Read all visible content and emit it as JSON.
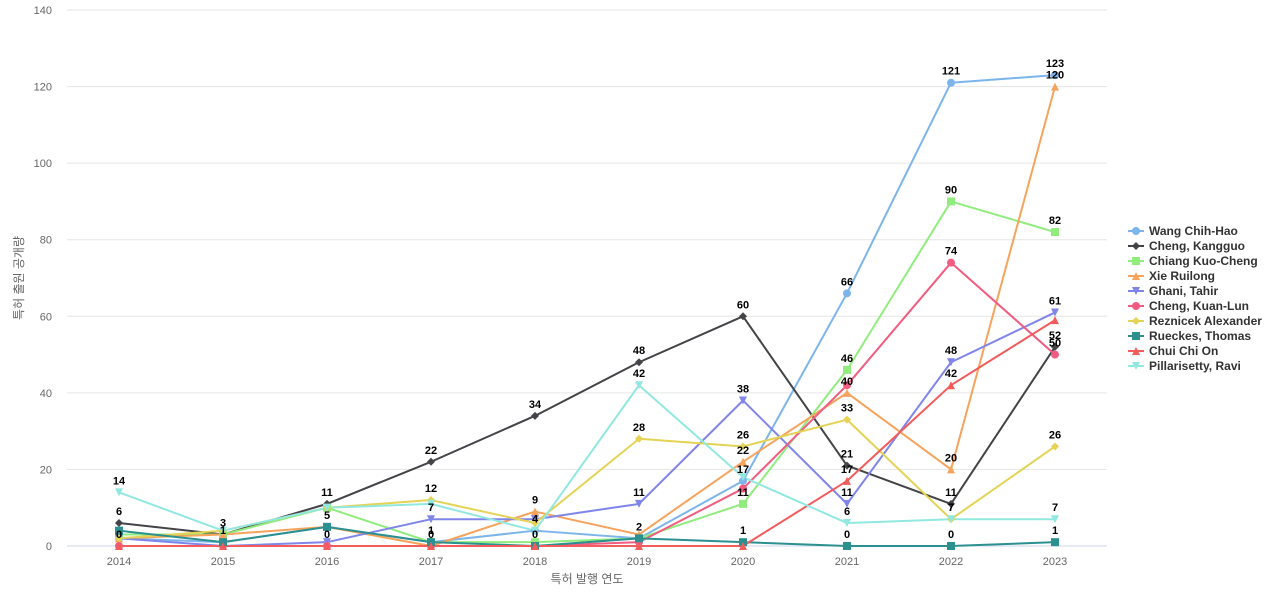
{
  "chart_data": {
    "type": "line",
    "title": "",
    "xlabel": "특허 발행 연도",
    "ylabel": "특허 출원 공개량",
    "ylim": [
      0,
      140
    ],
    "yticks": [
      0,
      20,
      40,
      60,
      80,
      100,
      120,
      140
    ],
    "grid": true,
    "legend_position": "right",
    "x": [
      "2014",
      "2015",
      "2016",
      "2017",
      "2018",
      "2019",
      "2020",
      "2021",
      "2022",
      "2023"
    ],
    "series": [
      {
        "name": "Wang Chih-Hao",
        "color": "#7cb5ec",
        "marker": "circle",
        "values": [
          null,
          null,
          null,
          null,
          null,
          null,
          17,
          66,
          121,
          123
        ]
      },
      {
        "name": "Cheng, Kangguo",
        "color": "#434348",
        "marker": "diamond",
        "values": [
          6,
          3,
          11,
          22,
          34,
          48,
          60,
          21,
          11,
          52
        ]
      },
      {
        "name": "Chiang Kuo-Cheng",
        "color": "#90ed7d",
        "marker": "square",
        "values": [
          null,
          null,
          null,
          null,
          null,
          null,
          11,
          46,
          90,
          82
        ]
      },
      {
        "name": "Xie Ruilong",
        "color": "#f7a35c",
        "marker": "triangle",
        "values": [
          null,
          null,
          null,
          null,
          9,
          null,
          22,
          40,
          20,
          120
        ]
      },
      {
        "name": "Ghani, Tahir",
        "color": "#8085e9",
        "marker": "triangle-down",
        "values": [
          null,
          null,
          null,
          7,
          null,
          11,
          38,
          11,
          48,
          61
        ]
      },
      {
        "name": "Cheng, Kuan-Lun",
        "color": "#f15c80",
        "marker": "circle",
        "values": [
          null,
          null,
          null,
          null,
          null,
          null,
          null,
          null,
          74,
          50
        ]
      },
      {
        "name": "Reznicek Alexander",
        "color": "#e4d354",
        "marker": "diamond",
        "values": [
          null,
          null,
          null,
          12,
          null,
          28,
          26,
          33,
          7,
          26
        ]
      },
      {
        "name": "Rueckes, Thomas",
        "color": "#2b908f",
        "marker": "square",
        "values": [
          null,
          1,
          5,
          1,
          0,
          2,
          1,
          0,
          0,
          1
        ]
      },
      {
        "name": "Chui Chi On",
        "color": "#f45b5b",
        "marker": "triangle",
        "values": [
          0,
          null,
          0,
          0,
          null,
          null,
          null,
          17,
          42,
          null
        ]
      },
      {
        "name": "Pillarisetty, Ravi",
        "color": "#91e8e1",
        "marker": "triangle-down",
        "values": [
          14,
          null,
          null,
          null,
          4,
          42,
          null,
          6,
          7,
          7
        ]
      }
    ],
    "hidden_points": [
      {
        "s": 0,
        "v": [
          2,
          1,
          5,
          1,
          4,
          2
        ]
      },
      {
        "s": 2,
        "v": [
          3,
          3,
          10,
          1,
          1,
          2
        ]
      },
      {
        "s": 3,
        "v": [
          2,
          3,
          5,
          0,
          null,
          3
        ]
      },
      {
        "s": 4,
        "v": [
          2,
          0,
          1,
          null,
          7
        ]
      },
      {
        "s": 5,
        "v": [
          0,
          0,
          0,
          0,
          0,
          1,
          15,
          42
        ]
      },
      {
        "s": 6,
        "v": [
          2,
          4,
          10,
          null,
          6
        ]
      },
      {
        "s": 7,
        "v": [
          4
        ]
      },
      {
        "s": 8,
        "v": [
          null,
          0,
          null,
          null,
          0,
          0,
          0,
          null,
          null,
          59
        ]
      },
      {
        "s": 9,
        "v": [
          null,
          4,
          10,
          11,
          null,
          null,
          18
        ]
      }
    ]
  }
}
